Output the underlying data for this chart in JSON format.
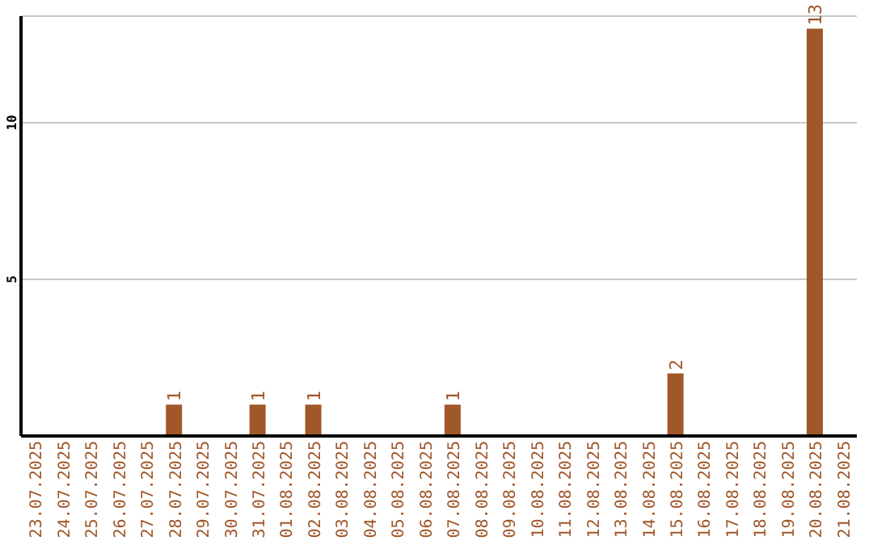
{
  "chart_data": {
    "type": "bar",
    "categories": [
      "23.07.2025",
      "24.07.2025",
      "25.07.2025",
      "26.07.2025",
      "27.07.2025",
      "28.07.2025",
      "29.07.2025",
      "30.07.2025",
      "31.07.2025",
      "01.08.2025",
      "02.08.2025",
      "03.08.2025",
      "04.08.2025",
      "05.08.2025",
      "06.08.2025",
      "07.08.2025",
      "08.08.2025",
      "09.08.2025",
      "10.08.2025",
      "11.08.2025",
      "12.08.2025",
      "13.08.2025",
      "14.08.2025",
      "15.08.2025",
      "16.08.2025",
      "17.08.2025",
      "18.08.2025",
      "19.08.2025",
      "20.08.2025",
      "21.08.2025"
    ],
    "values": [
      0,
      0,
      0,
      0,
      0,
      1,
      0,
      0,
      1,
      0,
      1,
      0,
      0,
      0,
      0,
      1,
      0,
      0,
      0,
      0,
      0,
      0,
      0,
      2,
      0,
      0,
      0,
      0,
      13,
      0
    ],
    "value_labels": [
      null,
      null,
      null,
      null,
      null,
      "1",
      null,
      null,
      "1",
      null,
      "1",
      null,
      null,
      null,
      null,
      "1",
      null,
      null,
      null,
      null,
      null,
      null,
      null,
      "2",
      null,
      null,
      null,
      null,
      "13",
      null
    ],
    "color": "#a0572a",
    "ylim": [
      0,
      13.4
    ],
    "yticks": [
      5,
      10
    ],
    "grid": "y"
  }
}
